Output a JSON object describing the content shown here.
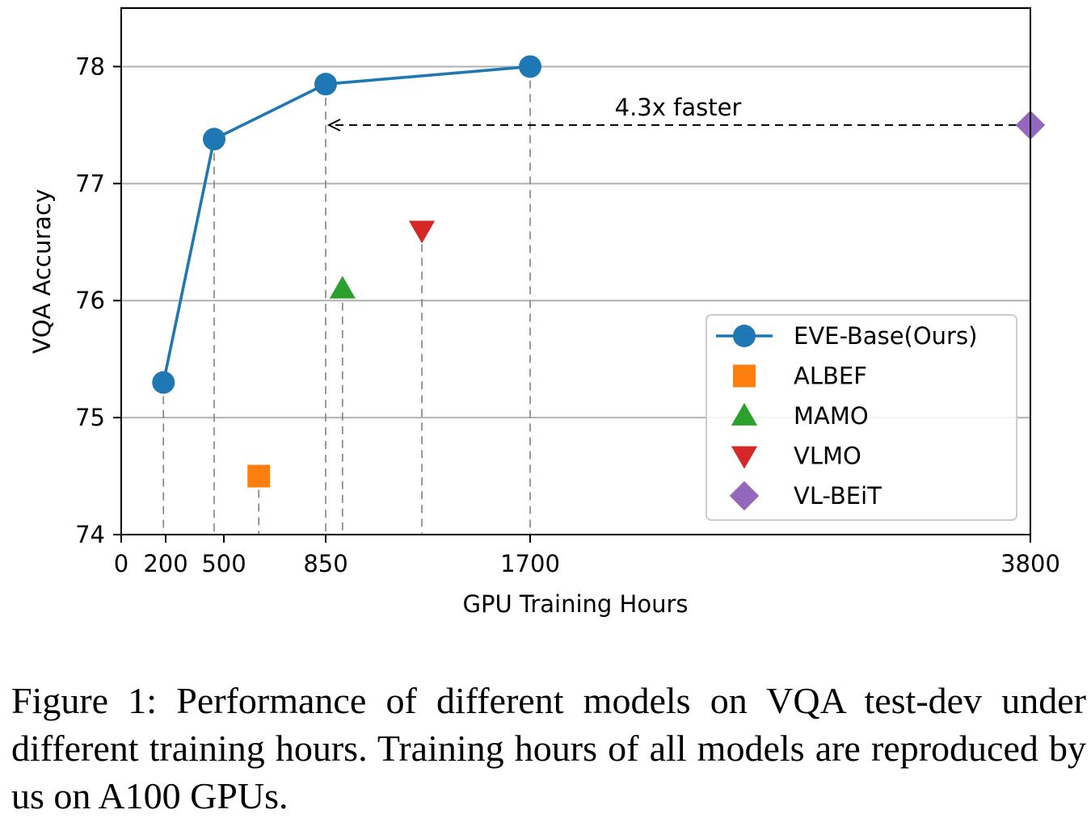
{
  "chart_data": {
    "type": "scatter",
    "xlabel": "GPU Training Hours",
    "ylabel": "VQA Accuracy",
    "xlim": [
      0,
      3800
    ],
    "ylim": [
      74,
      78.5
    ],
    "x_axis_scale": "piecewise-linear",
    "x_axis_breakpoints": [
      0,
      200,
      500,
      850,
      1700,
      3800
    ],
    "x_ticks": [
      {
        "value": 0,
        "label": "0"
      },
      {
        "value": 200,
        "label": "200"
      },
      {
        "value": 500,
        "label": "500"
      },
      {
        "value": 850,
        "label": "850"
      },
      {
        "value": 1700,
        "label": "1700"
      },
      {
        "value": 3800,
        "label": "3800"
      }
    ],
    "y_ticks": [
      {
        "value": 74,
        "label": "74"
      },
      {
        "value": 75,
        "label": "75"
      },
      {
        "value": 76,
        "label": "76"
      },
      {
        "value": 77,
        "label": "77"
      },
      {
        "value": 78,
        "label": "78"
      }
    ],
    "grid": "horizontal",
    "legend_position": "lower-right",
    "series": [
      {
        "name": "EVE-Base(Ours)",
        "marker": "circle",
        "line": true,
        "color": "#1f77b4",
        "points": [
          {
            "x": 190,
            "y": 75.3
          },
          {
            "x": 450,
            "y": 77.38
          },
          {
            "x": 850,
            "y": 77.85
          },
          {
            "x": 1700,
            "y": 78.0
          }
        ]
      },
      {
        "name": "ALBEF",
        "marker": "square",
        "line": false,
        "color": "#ff7f0e",
        "points": [
          {
            "x": 620,
            "y": 74.5
          }
        ]
      },
      {
        "name": "MAMO",
        "marker": "triangle-up",
        "line": false,
        "color": "#2ca02c",
        "points": [
          {
            "x": 920,
            "y": 76.1
          }
        ]
      },
      {
        "name": "VLMO",
        "marker": "triangle-down",
        "line": false,
        "color": "#d62728",
        "points": [
          {
            "x": 1250,
            "y": 76.6
          }
        ]
      },
      {
        "name": "VL-BEiT",
        "marker": "diamond",
        "line": false,
        "color": "#9467bd",
        "points": [
          {
            "x": 3800,
            "y": 77.5
          }
        ]
      }
    ],
    "annotations": [
      {
        "text": "4.3x faster",
        "arrow_from": {
          "x": 3800,
          "y": 77.5
        },
        "arrow_to": {
          "x": 850,
          "y": 77.5
        },
        "style": "dashed"
      }
    ]
  },
  "caption": "Figure 1: Performance of different models on VQA test-dev under different training hours. Training hours of all models are reproduced by us on A100 GPUs."
}
